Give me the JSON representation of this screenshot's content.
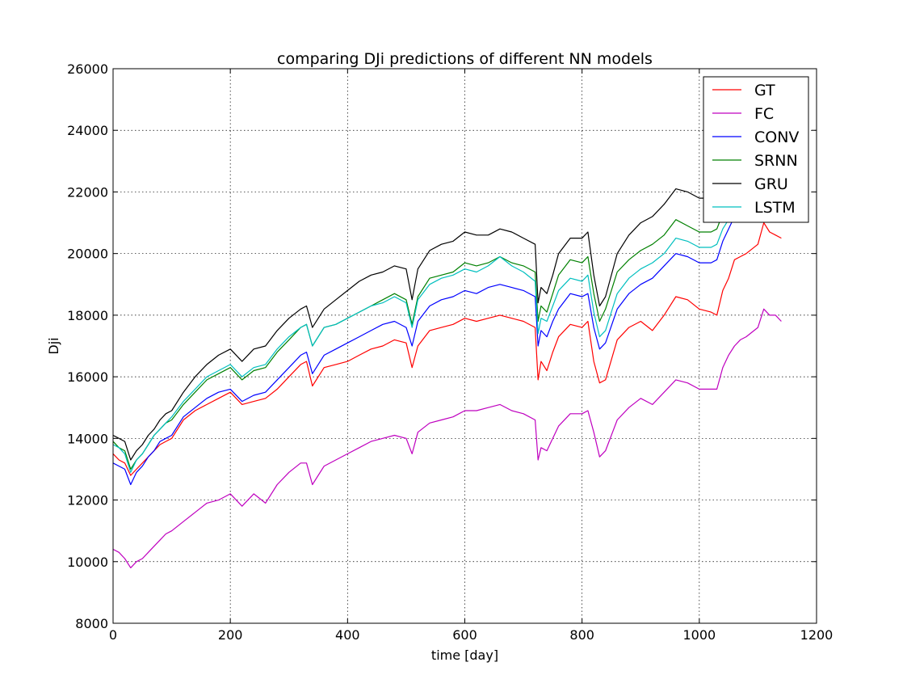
{
  "chart_data": {
    "type": "line",
    "title": "comparing DJi predictions of different NN models",
    "xlabel": "time [day]",
    "ylabel": "Dji",
    "xlim": [
      0,
      1200
    ],
    "ylim": [
      8000,
      26000
    ],
    "xticks": [
      0,
      200,
      400,
      600,
      800,
      1000,
      1200
    ],
    "xtick_labels": [
      "0",
      "200",
      "400",
      "600",
      "800",
      "1000",
      "1200"
    ],
    "yticks": [
      8000,
      10000,
      12000,
      14000,
      16000,
      18000,
      20000,
      22000,
      24000,
      26000
    ],
    "ytick_labels": [
      "8000",
      "10000",
      "12000",
      "14000",
      "16000",
      "18000",
      "20000",
      "22000",
      "24000",
      "26000"
    ],
    "grid": true,
    "legend_position": "top-right",
    "series": [
      {
        "name": "GT",
        "color": "#ff0000",
        "x": [
          0,
          10,
          20,
          30,
          40,
          50,
          60,
          70,
          80,
          90,
          100,
          120,
          140,
          160,
          180,
          200,
          220,
          240,
          260,
          280,
          300,
          320,
          330,
          340,
          360,
          380,
          400,
          420,
          440,
          460,
          480,
          500,
          510,
          520,
          540,
          560,
          580,
          600,
          620,
          640,
          660,
          680,
          700,
          720,
          725,
          730,
          740,
          750,
          760,
          780,
          800,
          810,
          820,
          830,
          840,
          860,
          880,
          900,
          920,
          940,
          960,
          980,
          1000,
          1020,
          1030,
          1040,
          1050,
          1060,
          1070,
          1080,
          1100,
          1110,
          1120,
          1130,
          1140
        ],
        "y": [
          13500,
          13300,
          13200,
          12800,
          13000,
          13200,
          13400,
          13600,
          13800,
          13900,
          14000,
          14600,
          14900,
          15100,
          15300,
          15500,
          15100,
          15200,
          15300,
          15600,
          16000,
          16400,
          16500,
          15700,
          16300,
          16400,
          16500,
          16700,
          16900,
          17000,
          17200,
          17100,
          16300,
          17000,
          17500,
          17600,
          17700,
          17900,
          17800,
          17900,
          18000,
          17900,
          17800,
          17600,
          15900,
          16500,
          16200,
          16800,
          17300,
          17700,
          17600,
          17800,
          16500,
          15800,
          15900,
          17200,
          17600,
          17800,
          17500,
          18000,
          18600,
          18500,
          18200,
          18100,
          18000,
          18800,
          19200,
          19800,
          19900,
          20000,
          20300,
          21000,
          20700,
          20600,
          20500
        ]
      },
      {
        "name": "FC",
        "color": "#bf00bf",
        "x": [
          0,
          10,
          20,
          30,
          40,
          50,
          60,
          70,
          80,
          90,
          100,
          120,
          140,
          160,
          180,
          200,
          220,
          240,
          260,
          280,
          300,
          320,
          330,
          340,
          360,
          380,
          400,
          420,
          440,
          460,
          480,
          500,
          510,
          520,
          540,
          560,
          580,
          600,
          620,
          640,
          660,
          680,
          700,
          720,
          725,
          730,
          740,
          750,
          760,
          780,
          800,
          810,
          820,
          830,
          840,
          860,
          880,
          900,
          920,
          940,
          960,
          980,
          1000,
          1020,
          1030,
          1040,
          1050,
          1060,
          1070,
          1080,
          1100,
          1110,
          1120,
          1130,
          1140
        ],
        "y": [
          10400,
          10300,
          10100,
          9800,
          10000,
          10100,
          10300,
          10500,
          10700,
          10900,
          11000,
          11300,
          11600,
          11900,
          12000,
          12200,
          11800,
          12200,
          11900,
          12500,
          12900,
          13200,
          13200,
          12500,
          13100,
          13300,
          13500,
          13700,
          13900,
          14000,
          14100,
          14000,
          13500,
          14200,
          14500,
          14600,
          14700,
          14900,
          14900,
          15000,
          15100,
          14900,
          14800,
          14600,
          13300,
          13700,
          13600,
          14000,
          14400,
          14800,
          14800,
          14900,
          14200,
          13400,
          13600,
          14600,
          15000,
          15300,
          15100,
          15500,
          15900,
          15800,
          15600,
          15600,
          15600,
          16300,
          16700,
          17000,
          17200,
          17300,
          17600,
          18200,
          18000,
          18000,
          17800
        ]
      },
      {
        "name": "CONV",
        "color": "#0000ff",
        "x": [
          0,
          10,
          20,
          30,
          40,
          50,
          60,
          70,
          80,
          90,
          100,
          120,
          140,
          160,
          180,
          200,
          220,
          240,
          260,
          280,
          300,
          320,
          330,
          340,
          360,
          380,
          400,
          420,
          440,
          460,
          480,
          500,
          510,
          520,
          540,
          560,
          580,
          600,
          620,
          640,
          660,
          680,
          700,
          720,
          725,
          730,
          740,
          750,
          760,
          780,
          800,
          810,
          820,
          830,
          840,
          860,
          880,
          900,
          920,
          940,
          960,
          980,
          1000,
          1020,
          1030,
          1040,
          1050,
          1060,
          1070,
          1080
        ],
        "y": [
          13200,
          13100,
          13000,
          12500,
          12900,
          13100,
          13400,
          13600,
          13900,
          14000,
          14100,
          14700,
          15000,
          15300,
          15500,
          15600,
          15200,
          15400,
          15500,
          15900,
          16300,
          16700,
          16800,
          16100,
          16700,
          16900,
          17100,
          17300,
          17500,
          17700,
          17800,
          17600,
          17000,
          17800,
          18300,
          18500,
          18600,
          18800,
          18700,
          18900,
          19000,
          18900,
          18800,
          18600,
          17000,
          17500,
          17300,
          17800,
          18200,
          18700,
          18600,
          18700,
          17600,
          16900,
          17100,
          18200,
          18700,
          19000,
          19200,
          19600,
          20000,
          19900,
          19700,
          19700,
          19800,
          20400,
          20800,
          21200,
          21400,
          21500
        ]
      },
      {
        "name": "SRNN",
        "color": "#008000",
        "x": [
          0,
          10,
          20,
          30,
          40,
          50,
          60,
          70,
          80,
          90,
          100,
          120,
          140,
          160,
          180,
          200,
          220,
          240,
          260,
          280,
          300,
          320,
          330,
          340,
          360,
          380,
          400,
          420,
          440,
          460,
          480,
          500,
          510,
          520,
          540,
          560,
          580,
          600,
          620,
          640,
          660,
          680,
          700,
          720,
          725,
          730,
          740,
          750,
          760,
          780,
          800,
          810,
          820,
          830,
          840,
          860,
          880,
          900,
          920,
          940,
          960,
          980,
          1000,
          1020,
          1030,
          1040,
          1050,
          1060,
          1070,
          1080
        ],
        "y": [
          13900,
          13700,
          13600,
          13000,
          13300,
          13500,
          13800,
          14100,
          14300,
          14500,
          14600,
          15100,
          15500,
          15900,
          16100,
          16300,
          15900,
          16200,
          16300,
          16800,
          17200,
          17600,
          17700,
          17000,
          17600,
          17700,
          17900,
          18100,
          18300,
          18500,
          18700,
          18500,
          17700,
          18600,
          19200,
          19300,
          19400,
          19700,
          19600,
          19700,
          19900,
          19700,
          19600,
          19400,
          17800,
          18300,
          18100,
          18700,
          19300,
          19800,
          19700,
          19900,
          18700,
          17800,
          18200,
          19400,
          19800,
          20100,
          20300,
          20600,
          21100,
          20900,
          20700,
          20700,
          20800,
          21300,
          21500,
          21700,
          21800,
          21900
        ]
      },
      {
        "name": "GRU",
        "color": "#000000",
        "x": [
          0,
          10,
          20,
          30,
          40,
          50,
          60,
          70,
          80,
          90,
          100,
          120,
          140,
          160,
          180,
          200,
          220,
          240,
          260,
          280,
          300,
          320,
          330,
          340,
          360,
          380,
          400,
          420,
          440,
          460,
          480,
          500,
          510,
          520,
          540,
          560,
          580,
          600,
          620,
          640,
          660,
          680,
          700,
          720,
          725,
          730,
          740,
          750,
          760,
          780,
          800,
          810,
          820,
          830,
          840,
          860,
          880,
          900,
          920,
          940,
          960,
          980,
          1000,
          1020,
          1030,
          1040,
          1050,
          1060,
          1070,
          1080
        ],
        "y": [
          14100,
          14000,
          13900,
          13300,
          13600,
          13800,
          14100,
          14300,
          14600,
          14800,
          14900,
          15500,
          16000,
          16400,
          16700,
          16900,
          16500,
          16900,
          17000,
          17500,
          17900,
          18200,
          18300,
          17600,
          18200,
          18500,
          18800,
          19100,
          19300,
          19400,
          19600,
          19500,
          18500,
          19500,
          20100,
          20300,
          20400,
          20700,
          20600,
          20600,
          20800,
          20700,
          20500,
          20300,
          18400,
          18900,
          18700,
          19300,
          20000,
          20500,
          20500,
          20700,
          19300,
          18300,
          18600,
          20000,
          20600,
          21000,
          21200,
          21600,
          22100,
          22000,
          21800,
          21800,
          21900,
          22200,
          22300,
          22400,
          22500,
          22500
        ]
      },
      {
        "name": "LSTM",
        "color": "#00bfbf",
        "x": [
          0,
          10,
          20,
          30,
          40,
          50,
          60,
          70,
          80,
          90,
          100,
          120,
          140,
          160,
          180,
          200,
          220,
          240,
          260,
          280,
          300,
          320,
          330,
          340,
          360,
          380,
          400,
          420,
          440,
          460,
          480,
          500,
          510,
          520,
          540,
          560,
          580,
          600,
          620,
          640,
          660,
          680,
          700,
          720,
          725,
          730,
          740,
          750,
          760,
          780,
          800,
          810,
          820,
          830,
          840,
          860,
          880,
          900,
          920,
          940,
          960,
          980,
          1000,
          1020,
          1030,
          1040,
          1050,
          1060,
          1070,
          1080
        ],
        "y": [
          13800,
          13700,
          13500,
          12900,
          13300,
          13500,
          13800,
          14100,
          14300,
          14500,
          14700,
          15200,
          15600,
          16000,
          16200,
          16400,
          16000,
          16300,
          16400,
          16900,
          17300,
          17600,
          17700,
          17000,
          17600,
          17700,
          17900,
          18100,
          18300,
          18400,
          18600,
          18400,
          17600,
          18500,
          19000,
          19200,
          19300,
          19500,
          19400,
          19600,
          19900,
          19600,
          19400,
          19100,
          17400,
          17900,
          17800,
          18300,
          18800,
          19200,
          19100,
          19300,
          18100,
          17300,
          17500,
          18700,
          19200,
          19500,
          19700,
          20000,
          20500,
          20400,
          20200,
          20200,
          20300,
          20800,
          21100,
          21400,
          21600,
          21700
        ]
      }
    ]
  }
}
